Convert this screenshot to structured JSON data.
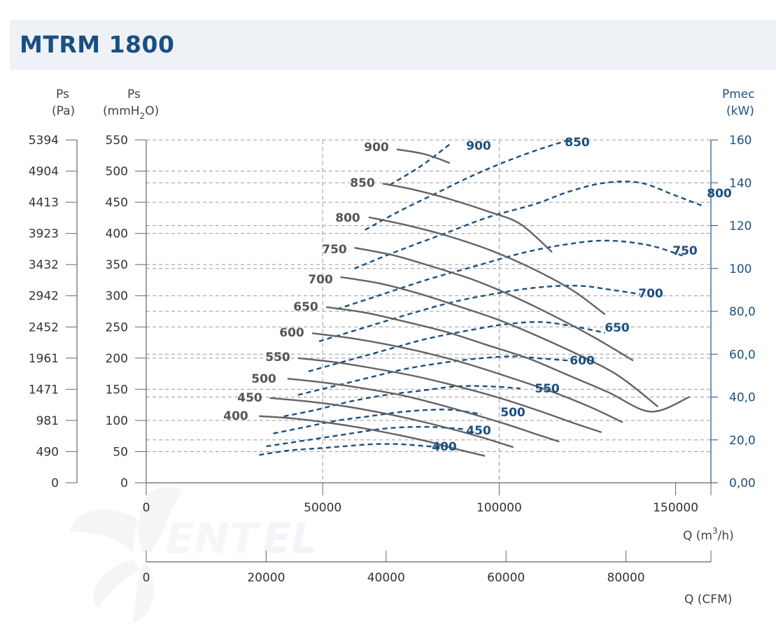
{
  "title": "MTRM 1800",
  "chart_data": {
    "type": "line",
    "title": "MTRM 1800",
    "axes": {
      "left_pa": {
        "label": "Ps",
        "unit": "(Pa)",
        "ticks": [
          "5394",
          "4904",
          "4413",
          "3923",
          "3432",
          "2942",
          "2452",
          "1961",
          "1471",
          "981",
          "490",
          "0"
        ]
      },
      "left_mmh2o": {
        "label": "Ps",
        "unit_prefix": "(mmH",
        "unit_sub": "2",
        "unit_suffix": "O)",
        "ticks": [
          550,
          500,
          450,
          400,
          350,
          300,
          250,
          200,
          150,
          100,
          50,
          0
        ],
        "ylim": [
          0,
          550
        ]
      },
      "right_kw": {
        "label": "Pmec",
        "unit": "(kW)",
        "ticks": [
          "160",
          "140",
          "120",
          "100",
          "80,0",
          "60,0",
          "40,0",
          "20,0",
          "0,00"
        ],
        "ylim": [
          0,
          160
        ]
      },
      "bottom_m3h": {
        "label_prefix": "Q (m",
        "label_sup": "3",
        "label_suffix": "/h)",
        "ticks": [
          0,
          50000,
          100000,
          150000
        ],
        "xlim": [
          0,
          160000
        ]
      },
      "bottom_cfm": {
        "label": "Q (CFM)",
        "ticks": [
          0,
          20000,
          40000,
          60000,
          80000
        ],
        "xlim": [
          0,
          94170
        ]
      }
    },
    "grid": "dashed",
    "series_pressure": [
      {
        "name": "900",
        "points": [
          [
            71000,
            535
          ],
          [
            79000,
            527
          ],
          [
            86000,
            513
          ]
        ]
      },
      {
        "name": "850",
        "points": [
          [
            67000,
            480
          ],
          [
            76000,
            470
          ],
          [
            86000,
            455
          ],
          [
            97000,
            435
          ],
          [
            106000,
            415
          ],
          [
            115000,
            370
          ]
        ]
      },
      {
        "name": "800",
        "points": [
          [
            63000,
            426
          ],
          [
            74000,
            413
          ],
          [
            86000,
            395
          ],
          [
            98000,
            372
          ],
          [
            110000,
            342
          ],
          [
            121000,
            308
          ],
          [
            130000,
            270
          ]
        ]
      },
      {
        "name": "750",
        "points": [
          [
            59000,
            377
          ],
          [
            70000,
            365
          ],
          [
            81000,
            347
          ],
          [
            93000,
            325
          ],
          [
            104000,
            299
          ],
          [
            115000,
            269
          ],
          [
            127000,
            233
          ],
          [
            138000,
            196
          ]
        ]
      },
      {
        "name": "700",
        "points": [
          [
            55000,
            330
          ],
          [
            66000,
            320
          ],
          [
            77000,
            304
          ],
          [
            88000,
            284
          ],
          [
            100000,
            261
          ],
          [
            111000,
            235
          ],
          [
            123000,
            204
          ],
          [
            134000,
            171
          ],
          [
            145000,
            122
          ]
        ]
      },
      {
        "name": "650",
        "points": [
          [
            51000,
            282
          ],
          [
            62000,
            273
          ],
          [
            73000,
            259
          ],
          [
            85000,
            242
          ],
          [
            96000,
            222
          ],
          [
            108000,
            200
          ],
          [
            119000,
            174
          ],
          [
            131000,
            145
          ],
          [
            143000,
            114
          ],
          [
            154000,
            138
          ]
        ]
      },
      {
        "name": "600",
        "points": [
          [
            47000,
            240
          ],
          [
            58000,
            232
          ],
          [
            69000,
            221
          ],
          [
            81000,
            206
          ],
          [
            92000,
            189
          ],
          [
            103000,
            169
          ],
          [
            115000,
            146
          ],
          [
            126000,
            121
          ],
          [
            135000,
            97
          ]
        ]
      },
      {
        "name": "550",
        "points": [
          [
            43000,
            200
          ],
          [
            54000,
            193
          ],
          [
            65000,
            183
          ],
          [
            77000,
            170
          ],
          [
            88000,
            155
          ],
          [
            99000,
            138
          ],
          [
            110000,
            118
          ],
          [
            121000,
            96
          ],
          [
            129000,
            81
          ]
        ]
      },
      {
        "name": "500",
        "points": [
          [
            40000,
            167
          ],
          [
            50000,
            161
          ],
          [
            61000,
            152
          ],
          [
            72000,
            141
          ],
          [
            82000,
            127
          ],
          [
            92000,
            111
          ],
          [
            102000,
            94
          ],
          [
            111000,
            77
          ],
          [
            117000,
            66
          ]
        ]
      },
      {
        "name": "450",
        "points": [
          [
            35000,
            136
          ],
          [
            45000,
            131
          ],
          [
            56000,
            123
          ],
          [
            66000,
            113
          ],
          [
            76000,
            101
          ],
          [
            86000,
            87
          ],
          [
            95000,
            73
          ],
          [
            104000,
            57
          ]
        ]
      },
      {
        "name": "400",
        "points": [
          [
            32000,
            107
          ],
          [
            42000,
            103
          ],
          [
            52000,
            96
          ],
          [
            62000,
            87
          ],
          [
            72000,
            76
          ],
          [
            80000,
            66
          ],
          [
            88000,
            54
          ],
          [
            96000,
            43
          ]
        ]
      }
    ],
    "series_power": [
      {
        "name": "900",
        "points": [
          [
            69000,
            139
          ],
          [
            78000,
            148
          ],
          [
            86000,
            158
          ]
        ]
      },
      {
        "name": "850",
        "points": [
          [
            62000,
            118
          ],
          [
            72000,
            127
          ],
          [
            82000,
            135
          ],
          [
            92000,
            143
          ],
          [
            102000,
            150
          ],
          [
            112000,
            156
          ],
          [
            120000,
            160
          ]
        ]
      },
      {
        "name": "800",
        "points": [
          [
            59000,
            100
          ],
          [
            71000,
            108
          ],
          [
            84000,
            116
          ],
          [
            97000,
            124
          ],
          [
            110000,
            130
          ],
          [
            120000,
            136
          ],
          [
            130000,
            140
          ],
          [
            140000,
            140
          ],
          [
            150000,
            134
          ],
          [
            158000,
            129
          ]
        ]
      },
      {
        "name": "750",
        "points": [
          [
            54000,
            81
          ],
          [
            67000,
            88
          ],
          [
            80000,
            95
          ],
          [
            93000,
            101
          ],
          [
            106000,
            107
          ],
          [
            118000,
            111
          ],
          [
            130000,
            113
          ],
          [
            142000,
            111
          ],
          [
            152000,
            106
          ]
        ]
      },
      {
        "name": "700",
        "points": [
          [
            49000,
            66
          ],
          [
            61000,
            72
          ],
          [
            73000,
            78
          ],
          [
            86000,
            84
          ],
          [
            98000,
            88
          ],
          [
            110000,
            91
          ],
          [
            122000,
            92
          ],
          [
            132000,
            90
          ],
          [
            140000,
            88
          ]
        ]
      },
      {
        "name": "650",
        "points": [
          [
            46000,
            52
          ],
          [
            57000,
            57
          ],
          [
            68000,
            62
          ],
          [
            79000,
            67
          ],
          [
            91000,
            71
          ],
          [
            102000,
            74
          ],
          [
            112000,
            75
          ],
          [
            121000,
            73
          ],
          [
            130000,
            70
          ]
        ]
      },
      {
        "name": "600",
        "points": [
          [
            43000,
            41
          ],
          [
            53000,
            45
          ],
          [
            63000,
            49
          ],
          [
            73000,
            53
          ],
          [
            84000,
            56
          ],
          [
            94000,
            58
          ],
          [
            104000,
            59
          ],
          [
            112000,
            58
          ],
          [
            120000,
            57
          ]
        ]
      },
      {
        "name": "550",
        "points": [
          [
            39000,
            31
          ],
          [
            48000,
            34
          ],
          [
            58000,
            38
          ],
          [
            68000,
            41
          ],
          [
            78000,
            43
          ],
          [
            88000,
            45
          ],
          [
            97000,
            45
          ],
          [
            106000,
            44
          ]
        ]
      },
      {
        "name": "500",
        "points": [
          [
            36000,
            23
          ],
          [
            45000,
            26
          ],
          [
            54000,
            29
          ],
          [
            63000,
            31
          ],
          [
            72000,
            33
          ],
          [
            80000,
            34
          ],
          [
            87000,
            34
          ],
          [
            95000,
            32
          ]
        ]
      },
      {
        "name": "450",
        "points": [
          [
            34000,
            17
          ],
          [
            42000,
            19
          ],
          [
            50000,
            21
          ],
          [
            58000,
            23
          ],
          [
            66000,
            25
          ],
          [
            74000,
            26
          ],
          [
            82000,
            26
          ],
          [
            90000,
            25
          ]
        ]
      },
      {
        "name": "400",
        "points": [
          [
            32000,
            13
          ],
          [
            40000,
            15
          ],
          [
            48000,
            16
          ],
          [
            56000,
            17
          ],
          [
            64000,
            18
          ],
          [
            72000,
            18
          ],
          [
            80000,
            17
          ],
          [
            84000,
            17
          ]
        ]
      }
    ],
    "pressure_labels": [
      "900",
      "850",
      "800",
      "750",
      "700",
      "650",
      "600",
      "550",
      "500",
      "450",
      "400"
    ],
    "power_labels": [
      "900",
      "850",
      "800",
      "750",
      "700",
      "650",
      "600",
      "550",
      "500",
      "450",
      "400"
    ],
    "colors": {
      "pressure": "#636363",
      "power": "#1a4f82",
      "grid": "#9a9a9a",
      "title": "#1a4f82",
      "band": "#eef2f7"
    }
  }
}
